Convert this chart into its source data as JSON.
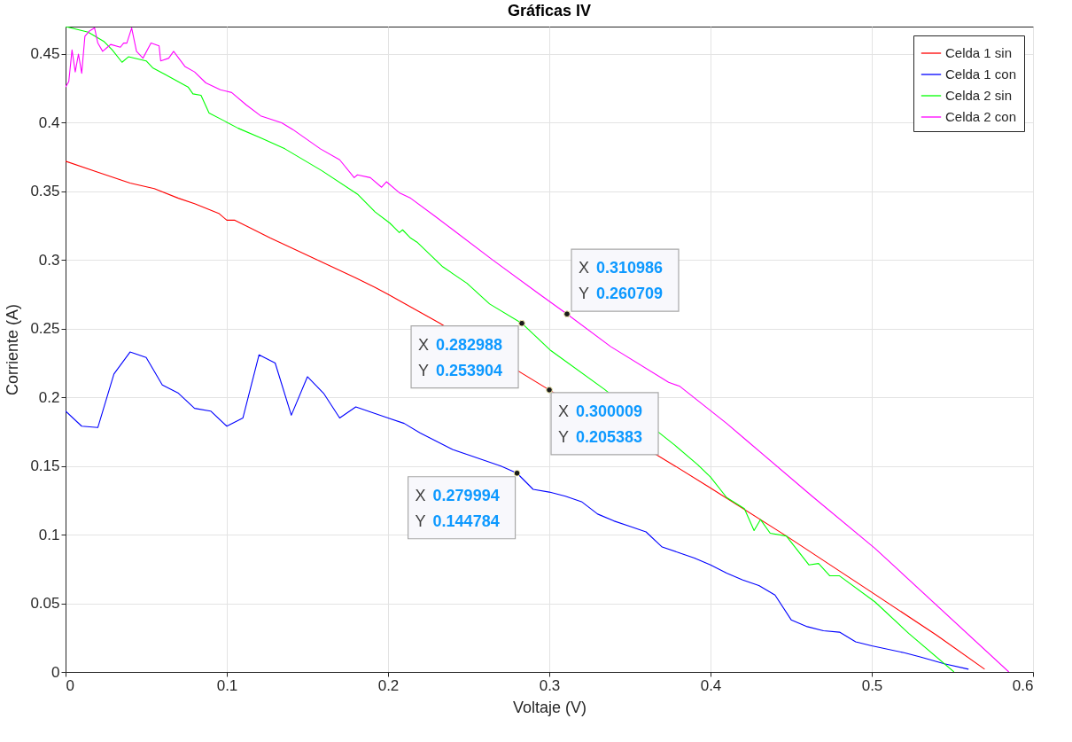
{
  "chart_data": {
    "type": "line",
    "title": "Gráficas IV",
    "xlabel": "Voltaje (V)",
    "ylabel": "Corriente (A)",
    "xlim": [
      0,
      0.6
    ],
    "ylim": [
      0,
      0.47
    ],
    "xticks": [
      0,
      0.1,
      0.2,
      0.3,
      0.4,
      0.5,
      0.6
    ],
    "yticks": [
      0,
      0.05,
      0.1,
      0.15,
      0.2,
      0.25,
      0.3,
      0.35,
      0.4,
      0.45
    ],
    "grid": true,
    "legend": "top right",
    "line_style": "solid",
    "series": [
      {
        "name": "Celda 1 sin",
        "color": "#ff0000",
        "x": [
          0,
          0.02,
          0.04,
          0.055,
          0.07,
          0.08,
          0.095,
          0.1,
          0.105,
          0.127,
          0.14,
          0.16,
          0.18,
          0.192,
          0.2,
          0.232,
          0.300009,
          0.378,
          0.4,
          0.447,
          0.5,
          0.54,
          0.57
        ],
        "values": [
          0.372,
          0.364,
          0.356,
          0.352,
          0.345,
          0.341,
          0.334,
          0.329,
          0.329,
          0.316,
          0.309,
          0.298,
          0.287,
          0.28,
          0.275,
          0.254,
          0.205383,
          0.15,
          0.134,
          0.099,
          0.058,
          0.027,
          0.002
        ]
      },
      {
        "name": "Celda 1 con",
        "color": "#0000ff",
        "x": [
          0,
          0.01,
          0.02,
          0.03,
          0.04,
          0.05,
          0.06,
          0.07,
          0.08,
          0.09,
          0.1,
          0.11,
          0.12,
          0.13,
          0.14,
          0.15,
          0.16,
          0.17,
          0.18,
          0.19,
          0.2,
          0.21,
          0.22,
          0.23,
          0.24,
          0.25,
          0.26,
          0.27,
          0.279994,
          0.29,
          0.3,
          0.31,
          0.32,
          0.33,
          0.34,
          0.35,
          0.36,
          0.37,
          0.38,
          0.39,
          0.4,
          0.41,
          0.42,
          0.43,
          0.44,
          0.45,
          0.46,
          0.47,
          0.48,
          0.49,
          0.5,
          0.52,
          0.53,
          0.545,
          0.56
        ],
        "values": [
          0.19,
          0.179,
          0.178,
          0.217,
          0.233,
          0.229,
          0.209,
          0.203,
          0.192,
          0.19,
          0.179,
          0.185,
          0.231,
          0.225,
          0.187,
          0.215,
          0.203,
          0.185,
          0.193,
          0.189,
          0.185,
          0.181,
          0.174,
          0.168,
          0.162,
          0.158,
          0.154,
          0.15,
          0.144784,
          0.133,
          0.131,
          0.128,
          0.124,
          0.115,
          0.11,
          0.106,
          0.102,
          0.091,
          0.087,
          0.083,
          0.078,
          0.072,
          0.067,
          0.063,
          0.056,
          0.038,
          0.033,
          0.03,
          0.029,
          0.022,
          0.019,
          0.014,
          0.011,
          0.006,
          0.002
        ]
      },
      {
        "name": "Celda 2 sin",
        "color": "#00ff00",
        "x": [
          0,
          0.014,
          0.024,
          0.029,
          0.035,
          0.039,
          0.05,
          0.054,
          0.062,
          0.076,
          0.079,
          0.084,
          0.089,
          0.099,
          0.107,
          0.121,
          0.136,
          0.159,
          0.181,
          0.192,
          0.201,
          0.207,
          0.209,
          0.214,
          0.218,
          0.234,
          0.249,
          0.263,
          0.282988,
          0.301,
          0.334,
          0.378,
          0.392,
          0.4,
          0.41,
          0.421,
          0.427,
          0.431,
          0.437,
          0.447,
          0.461,
          0.467,
          0.474,
          0.48,
          0.502,
          0.523,
          0.551
        ],
        "values": [
          0.47,
          0.466,
          0.459,
          0.453,
          0.444,
          0.448,
          0.445,
          0.44,
          0.435,
          0.426,
          0.421,
          0.42,
          0.407,
          0.401,
          0.396,
          0.389,
          0.381,
          0.365,
          0.348,
          0.335,
          0.327,
          0.32,
          0.322,
          0.316,
          0.313,
          0.295,
          0.283,
          0.268,
          0.253904,
          0.234,
          0.206,
          0.165,
          0.151,
          0.142,
          0.127,
          0.119,
          0.103,
          0.111,
          0.101,
          0.099,
          0.078,
          0.079,
          0.07,
          0.07,
          0.051,
          0.028,
          0
        ]
      },
      {
        "name": "Celda 2 con",
        "color": "#ff00ff",
        "x": [
          0,
          0.002,
          0.004,
          0.006,
          0.008,
          0.01,
          0.012,
          0.015,
          0.018,
          0.02,
          0.023,
          0.026,
          0.028,
          0.034,
          0.036,
          0.038,
          0.041,
          0.044,
          0.048,
          0.053,
          0.058,
          0.059,
          0.064,
          0.067,
          0.074,
          0.08,
          0.087,
          0.096,
          0.103,
          0.112,
          0.121,
          0.134,
          0.141,
          0.158,
          0.17,
          0.179,
          0.181,
          0.189,
          0.196,
          0.199,
          0.207,
          0.214,
          0.229,
          0.265,
          0.294,
          0.310986,
          0.338,
          0.374,
          0.381,
          0.41,
          0.422,
          0.463,
          0.502,
          0.585
        ],
        "values": [
          0.426,
          0.43,
          0.453,
          0.437,
          0.45,
          0.436,
          0.463,
          0.467,
          0.469,
          0.458,
          0.452,
          0.455,
          0.457,
          0.455,
          0.458,
          0.458,
          0.469,
          0.452,
          0.447,
          0.458,
          0.456,
          0.445,
          0.447,
          0.452,
          0.441,
          0.437,
          0.429,
          0.424,
          0.422,
          0.413,
          0.405,
          0.4,
          0.395,
          0.381,
          0.373,
          0.36,
          0.362,
          0.36,
          0.353,
          0.357,
          0.349,
          0.345,
          0.332,
          0.3,
          0.275,
          0.260709,
          0.237,
          0.211,
          0.208,
          0.181,
          0.169,
          0.128,
          0.09,
          0
        ]
      }
    ],
    "annotations": [
      {
        "text": "X 0.310986\nY 0.260709",
        "x": 0.310986,
        "y": 0.260709
      },
      {
        "text": "X 0.282988\nY 0.253904",
        "x": 0.282988,
        "y": 0.253904
      },
      {
        "text": "X 0.300009\nY 0.205383",
        "x": 0.300009,
        "y": 0.205383
      },
      {
        "text": "X 0.279994\nY 0.144784",
        "x": 0.279994,
        "y": 0.144784
      }
    ]
  }
}
